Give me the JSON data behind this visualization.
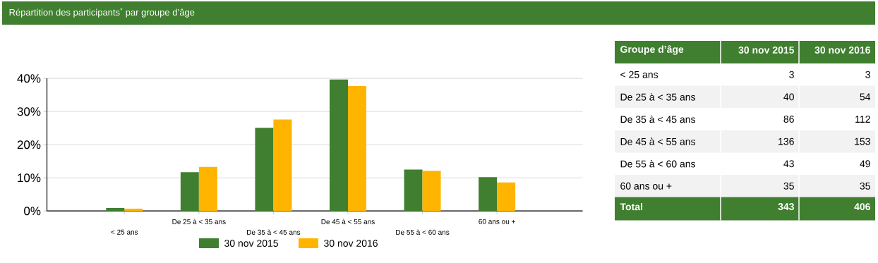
{
  "chart_data": [
    {
      "type": "bar",
      "title": "Répartition des participants$^{*}$ par groupe d’âge",
      "categories": [
        "< 25 ans",
        "De 25 à < 35 ans",
        "De 35 à < 45 ans",
        "De 45 à < 55 ans",
        "De 55 à < 60 ans",
        "60 ans ou +"
      ],
      "series": [
        {
          "name": "30 nov 2015",
          "color": "#3f7f2f",
          "values": [
            0.9,
            11.7,
            25.1,
            39.7,
            12.5,
            10.2
          ]
        },
        {
          "name": "30 nov 2016",
          "color": "#ffb400",
          "values": [
            0.7,
            13.3,
            27.6,
            37.7,
            12.1,
            8.6
          ]
        }
      ],
      "ylim": [
        0,
        40
      ],
      "yticks": [
        {
          "value": 0,
          "label": "0%"
        },
        {
          "value": 10,
          "label": "10%"
        },
        {
          "value": 20,
          "label": "20%"
        },
        {
          "value": 30,
          "label": "30%"
        },
        {
          "value": 40,
          "label": "40%"
        }
      ],
      "grid": "y",
      "legend": "bottom"
    },
    {
      "type": "other",
      "annotations": [
        "Groupe d’âge",
        "30 nov 2015",
        "30 nov 2016",
        "< 25 ans",
        "3",
        "3",
        "De 25 à < 35 ans",
        "40",
        "54",
        "De 35 à < 45 ans",
        "86",
        "112",
        "De 45 à < 55 ans",
        "136",
        "153",
        "De 55 à < 60 ans",
        "43",
        "49",
        "60 ans ou +",
        "35",
        "35",
        "Total",
        "343",
        "406"
      ]
    }
  ]
}
